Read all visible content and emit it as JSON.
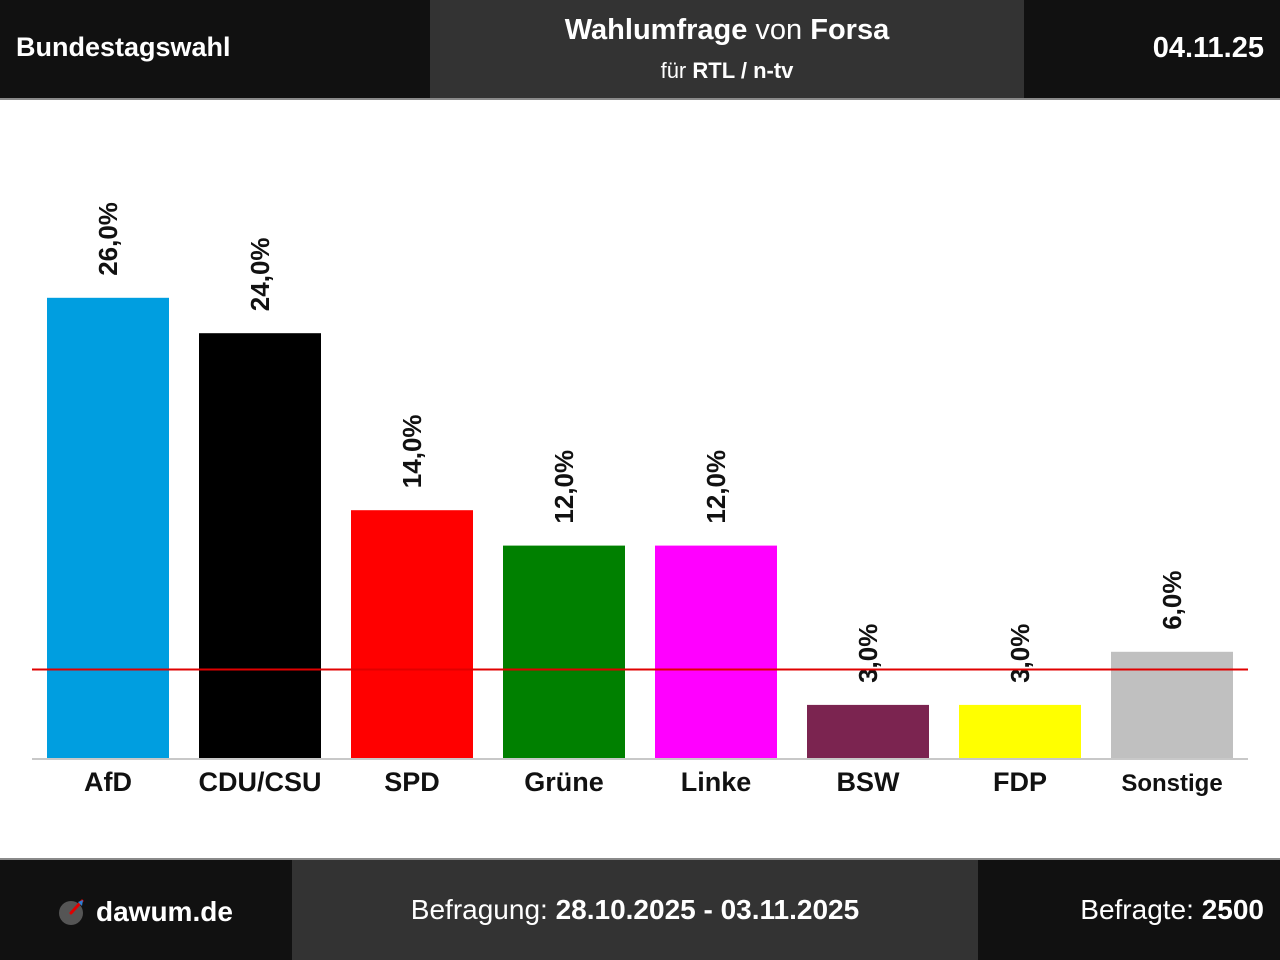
{
  "header": {
    "left_title": "Bundestagswahl",
    "center_line1_bold": "Wahlumfrage",
    "center_line1_mid": "von",
    "center_line1_bold2": "Forsa",
    "center_line2_prefix": "für",
    "center_line2_bold": "RTL / n-tv",
    "date": "04.11.25"
  },
  "footer": {
    "brand": "dawum.de",
    "period_label": "Befragung:",
    "period_value": "28.10.2025 - 03.11.2025",
    "respondents_label": "Befragte:",
    "respondents_value": "2500"
  },
  "chart_data": {
    "type": "bar",
    "categories": [
      "AfD",
      "CDU/CSU",
      "SPD",
      "Grüne",
      "Linke",
      "BSW",
      "FDP",
      "Sonstige"
    ],
    "values": [
      26.0,
      24.0,
      14.0,
      12.0,
      12.0,
      3.0,
      3.0,
      6.0
    ],
    "value_labels": [
      "26,0%",
      "24,0%",
      "14,0%",
      "12,0%",
      "12,0%",
      "3,0%",
      "3,0%",
      "6,0%"
    ],
    "colors": [
      "#009ee0",
      "#000000",
      "#ff0000",
      "#008000",
      "#ff00ff",
      "#7b2450",
      "#ffff00",
      "#c0c0c0"
    ],
    "threshold": 5.0,
    "threshold_color": "#e00000",
    "ylim": [
      0,
      30
    ],
    "grid": false,
    "legend": "none"
  }
}
